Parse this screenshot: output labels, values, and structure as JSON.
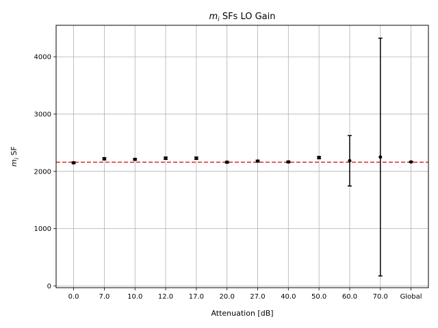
{
  "chart_data": {
    "type": "scatter",
    "title_var": "m",
    "title_sub": "i",
    "title_rest": " SFs LO Gain",
    "xlabel": "Attenuation [dB]",
    "ylabel_var": "m",
    "ylabel_sub": "i",
    "ylabel_rest": " SF",
    "categories": [
      "0.0",
      "7.0",
      "10.0",
      "12.0",
      "17.0",
      "20.0",
      "27.0",
      "40.0",
      "50.0",
      "60.0",
      "70.0",
      "Global"
    ],
    "values": [
      2150,
      2220,
      2210,
      2230,
      2230,
      2160,
      2180,
      2165,
      2240,
      2185,
      2250,
      2165
    ],
    "errors": [
      15,
      20,
      15,
      20,
      20,
      15,
      15,
      15,
      20,
      440,
      2075,
      10
    ],
    "ylim": [
      -30,
      4550
    ],
    "yticks": [
      0,
      1000,
      2000,
      3000,
      4000
    ],
    "reference_line": 2160,
    "grid": true,
    "colors": {
      "marker": "#000000",
      "reference": "#d62728",
      "grid": "#b0b0b0"
    }
  }
}
